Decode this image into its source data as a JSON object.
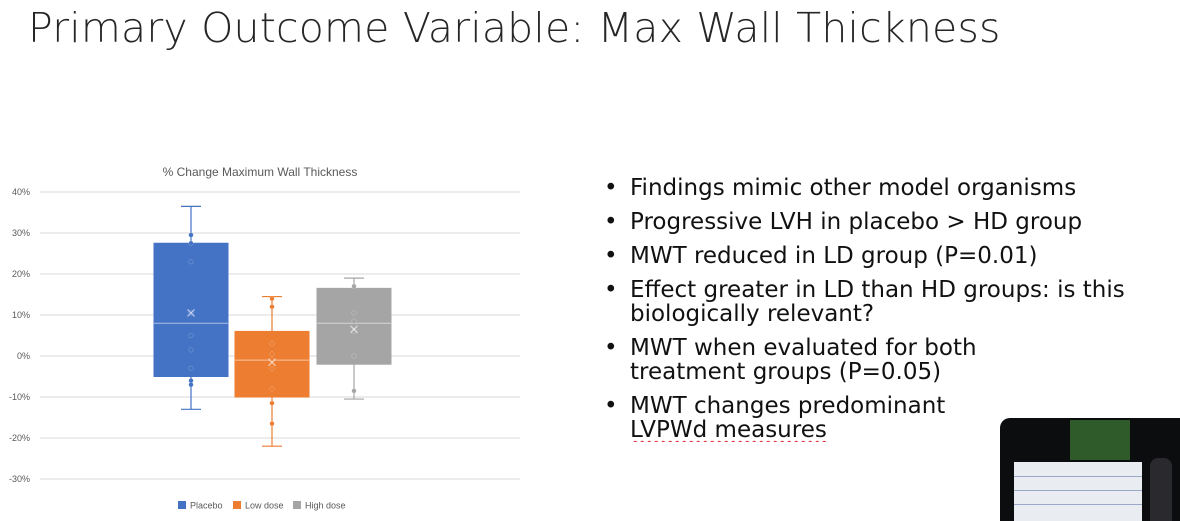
{
  "slide": {
    "title": "Primary Outcome Variable: Max Wall Thickness",
    "bullets": [
      "Findings mimic other model organisms",
      "Progressive LVH in placebo > HD group",
      "MWT reduced in LD group (P=0.01)",
      "Effect greater in LD than HD groups: is this biologically relevant?",
      "MWT when evaluated for both treatment groups (P=0.05)",
      "MWT changes predominant"
    ],
    "last_bullet_line2": "LVPWd measures"
  },
  "chart_data": {
    "type": "box",
    "title": "% Change Maximum Wall Thickness",
    "ylim": [
      -30,
      40
    ],
    "yticks": [
      "40%",
      "30%",
      "20%",
      "10%",
      "0%",
      "-10%",
      "-20%",
      "-30%"
    ],
    "ytick_values": [
      40,
      30,
      20,
      10,
      0,
      -10,
      -20,
      -30
    ],
    "legend_position": "bottom",
    "grid": true,
    "series": [
      {
        "name": "Placebo",
        "color": "#4472c4",
        "whisker_low": -13,
        "q1": -5,
        "median": 8,
        "q3": 27.5,
        "whisker_high": 36.5,
        "mean": 10.5,
        "points": [
          29.5,
          27.5,
          23,
          10.5,
          5,
          1.5,
          -3,
          -6,
          -7
        ]
      },
      {
        "name": "Low dose",
        "color": "#ed7d31",
        "whisker_low": -22,
        "q1": -10,
        "median": -1,
        "q3": 6,
        "whisker_high": 14.5,
        "mean": -1.5,
        "points": [
          14,
          12,
          3,
          0.5,
          -1,
          -3,
          -8,
          -11.5,
          -16.5
        ]
      },
      {
        "name": "High dose",
        "color": "#a5a5a5",
        "whisker_low": -10.5,
        "q1": -2,
        "median": 8,
        "q3": 16.5,
        "whisker_high": 19,
        "mean": 6.5,
        "points": [
          17,
          10.5,
          8.5,
          6,
          0,
          -8.5
        ]
      }
    ]
  }
}
